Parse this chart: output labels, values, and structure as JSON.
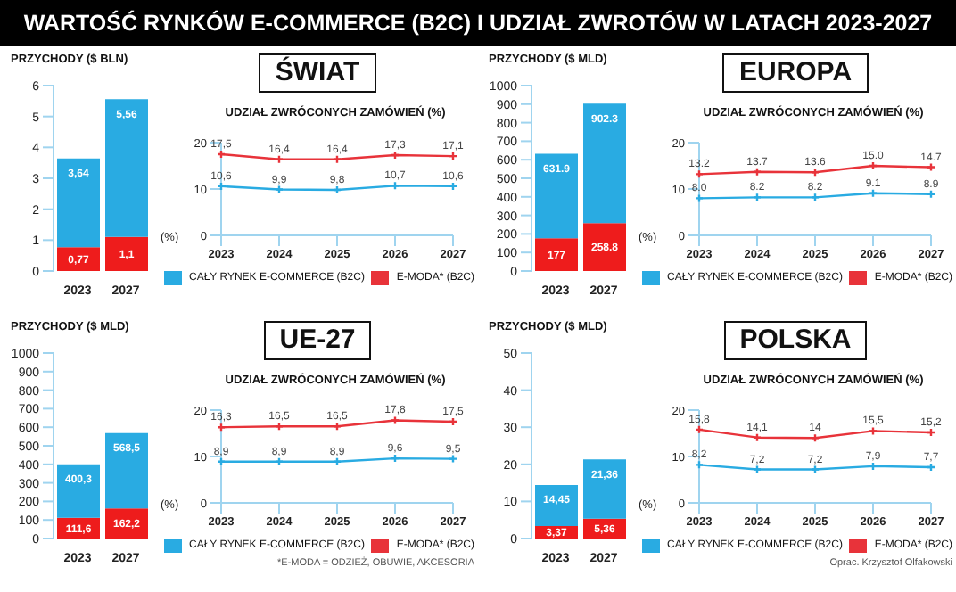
{
  "chart_data": [
    {
      "type": "bar",
      "title": "WARTOŚĆ RYNKÓW E-COMMERCE (B2C) I UDZIAŁ ZWROTÓW W LATACH 2023-2027",
      "ylabel": "PRZYCHODY ($ BLN)",
      "categories": [
        "2023",
        "2027"
      ],
      "ylim": [
        0,
        6
      ],
      "yticks": [
        0,
        1,
        2,
        3,
        4,
        5,
        6
      ],
      "stacked": true,
      "totals": [
        "3,64",
        "5,56"
      ],
      "series": [
        {
          "color": "#ee1c1c",
          "values": [
            0.77,
            1.1
          ],
          "value_labels": [
            "0,77",
            "1,1"
          ]
        },
        {
          "color": "#29abe2",
          "values": [
            2.87,
            4.46
          ]
        }
      ]
    },
    {
      "type": "line",
      "title": "ŚWIAT",
      "subtitle": "UDZIAŁ ZWRÓCONYCH ZAMÓWIEŃ (%)",
      "ylabel": "(%)",
      "categories": [
        "2023",
        "2024",
        "2025",
        "2026",
        "2027"
      ],
      "ylim": [
        0,
        20
      ],
      "yticks": [
        0,
        10,
        20
      ],
      "marker": "cross",
      "legend": "bottom",
      "series": [
        {
          "name": "CAŁY RYNEK E-COMMERCE (B2C)",
          "color": "#29abe2",
          "values": [
            10.6,
            9.9,
            9.8,
            10.7,
            10.6
          ],
          "value_labels": [
            "10,6",
            "9,9",
            "9,8",
            "10,7",
            "10,6"
          ]
        },
        {
          "name": "E-MODA* (B2C)",
          "color": "#e8333a",
          "values": [
            17.5,
            16.4,
            16.4,
            17.3,
            17.1
          ],
          "value_labels": [
            "17,5",
            "16,4",
            "16,4",
            "17,3",
            "17,1"
          ]
        }
      ]
    },
    {
      "type": "bar",
      "ylabel": "PRZYCHODY ($ MLD)",
      "categories": [
        "2023",
        "2027"
      ],
      "ylim": [
        0,
        1000
      ],
      "yticks": [
        0,
        100,
        200,
        300,
        400,
        500,
        600,
        700,
        800,
        900,
        1000
      ],
      "stacked": true,
      "totals": [
        "631.9",
        "902.3"
      ],
      "series": [
        {
          "color": "#ee1c1c",
          "values": [
            177,
            258.8
          ],
          "value_labels": [
            "177",
            "258.8"
          ]
        },
        {
          "color": "#29abe2",
          "values": [
            454.9,
            643.5
          ]
        }
      ]
    },
    {
      "type": "line",
      "title": "EUROPA",
      "subtitle": "UDZIAŁ ZWRÓCONYCH ZAMÓWIEŃ (%)",
      "ylabel": "(%)",
      "categories": [
        "2023",
        "2024",
        "2025",
        "2026",
        "2027"
      ],
      "ylim": [
        0,
        20
      ],
      "yticks": [
        0,
        10,
        20
      ],
      "marker": "cross",
      "legend": "bottom",
      "series": [
        {
          "name": "CAŁY RYNEK E-COMMERCE (B2C)",
          "color": "#29abe2",
          "values": [
            8.0,
            8.2,
            8.2,
            9.1,
            8.9
          ],
          "value_labels": [
            "8.0",
            "8.2",
            "8.2",
            "9.1",
            "8.9"
          ]
        },
        {
          "name": "E-MODA* (B2C)",
          "color": "#e8333a",
          "values": [
            13.2,
            13.7,
            13.6,
            15.0,
            14.7
          ],
          "value_labels": [
            "13.2",
            "13.7",
            "13.6",
            "15.0",
            "14.7"
          ]
        }
      ]
    },
    {
      "type": "bar",
      "ylabel": "PRZYCHODY ($ MLD)",
      "categories": [
        "2023",
        "2027"
      ],
      "ylim": [
        0,
        1000
      ],
      "yticks": [
        0,
        100,
        200,
        300,
        400,
        500,
        600,
        700,
        800,
        900,
        1000
      ],
      "stacked": true,
      "totals": [
        "400,3",
        "568,5"
      ],
      "series": [
        {
          "color": "#ee1c1c",
          "values": [
            111.6,
            162.2
          ],
          "value_labels": [
            "111,6",
            "162,2"
          ]
        },
        {
          "color": "#29abe2",
          "values": [
            288.7,
            406.3
          ]
        }
      ]
    },
    {
      "type": "line",
      "title": "UE-27",
      "subtitle": "UDZIAŁ ZWRÓCONYCH ZAMÓWIEŃ (%)",
      "ylabel": "(%)",
      "categories": [
        "2023",
        "2024",
        "2025",
        "2026",
        "2027"
      ],
      "ylim": [
        0,
        20
      ],
      "yticks": [
        0,
        10,
        20
      ],
      "marker": "cross",
      "legend": "bottom",
      "annotations": [
        "*E-MODA = ODZIEŻ, OBUWIE, AKCESORIA"
      ],
      "series": [
        {
          "name": "CAŁY RYNEK E-COMMERCE (B2C)",
          "color": "#29abe2",
          "values": [
            8.9,
            8.9,
            8.9,
            9.6,
            9.5
          ],
          "value_labels": [
            "8,9",
            "8,9",
            "8,9",
            "9,6",
            "9,5"
          ]
        },
        {
          "name": "E-MODA* (B2C)",
          "color": "#e8333a",
          "values": [
            16.3,
            16.5,
            16.5,
            17.8,
            17.5
          ],
          "value_labels": [
            "16,3",
            "16,5",
            "16,5",
            "17,8",
            "17,5"
          ]
        }
      ]
    },
    {
      "type": "bar",
      "ylabel": "PRZYCHODY ($ MLD)",
      "categories": [
        "2023",
        "2027"
      ],
      "ylim": [
        0,
        50
      ],
      "yticks": [
        0,
        10,
        20,
        30,
        40,
        50
      ],
      "stacked": true,
      "totals": [
        "14,45",
        "21,36"
      ],
      "series": [
        {
          "color": "#ee1c1c",
          "values": [
            3.37,
            5.36
          ],
          "value_labels": [
            "3,37",
            "5,36"
          ]
        },
        {
          "color": "#29abe2",
          "values": [
            11.08,
            16
          ]
        }
      ]
    },
    {
      "type": "line",
      "title": "POLSKA",
      "subtitle": "UDZIAŁ ZWRÓCONYCH ZAMÓWIEŃ (%)",
      "ylabel": "(%)",
      "categories": [
        "2023",
        "2024",
        "2025",
        "2026",
        "2027"
      ],
      "ylim": [
        0,
        20
      ],
      "yticks": [
        0,
        10,
        20
      ],
      "marker": "cross",
      "legend": "bottom",
      "annotations": [
        "Oprac. Krzysztof Olfakowski"
      ],
      "series": [
        {
          "name": "CAŁY RYNEK E-COMMERCE (B2C)",
          "color": "#29abe2",
          "values": [
            8.2,
            7.2,
            7.2,
            7.9,
            7.7
          ],
          "value_labels": [
            "8,2",
            "7,2",
            "7,2",
            "7,9",
            "7,7"
          ]
        },
        {
          "name": "E-MODA* (B2C)",
          "color": "#e8333a",
          "values": [
            15.8,
            14.1,
            14,
            15.5,
            15.2
          ],
          "value_labels": [
            "15,8",
            "14,1",
            "14",
            "15,5",
            "15,2"
          ]
        }
      ]
    }
  ]
}
